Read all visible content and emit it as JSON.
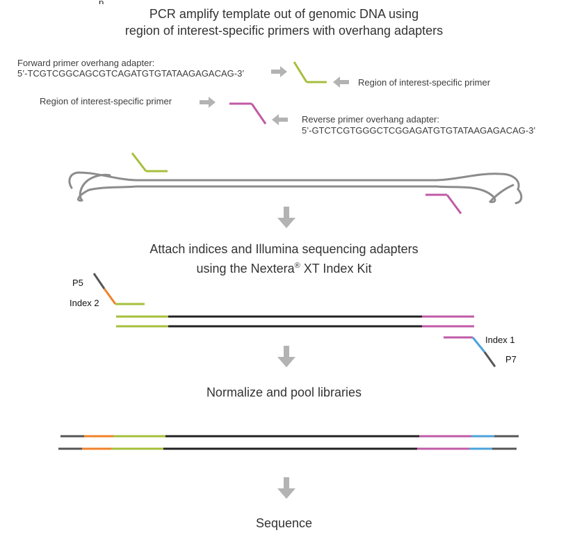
{
  "top_fragment": "p",
  "steps": {
    "step1_line1": "PCR amplify template out of genomic DNA using",
    "step1_line2": "region of interest-specific primers with overhang adapters",
    "step2_line1": "Attach indices and Illumina sequencing adapters",
    "step2_line2_prefix": "using the Nextera",
    "step2_line2_reg": "®",
    "step2_line2_suffix": " XT Index Kit",
    "step3": "Normalize and pool libraries",
    "step4": "Sequence"
  },
  "primers": {
    "forward_title": "Forward primer overhang adapter:",
    "forward_seq": "5’-TCGTCGGCAGCGTCAGATGTGTATAAGAGACAG-3’",
    "forward_region_label": "Region of interest-specific primer",
    "reverse_region_label": "Region of interest-specific primer",
    "reverse_title": "Reverse primer overhang adapter:",
    "reverse_seq": "5’-GTCTCGTGGGCTCGGAGATGTGTATAAGAGACAG-3’"
  },
  "adapters": {
    "p5": "P5",
    "index2": "Index 2",
    "index1": "Index 1",
    "p7": "P7"
  },
  "colors": {
    "green_primer": "#a6bf3b",
    "magenta_primer": "#c05aa6",
    "orange_index2": "#f0822a",
    "blue_index1": "#4ba3db",
    "adapter_gray": "#555555",
    "insert_black": "#222222",
    "arrow_gray": "#b3b3b3",
    "genomic_dna": "#8c8c8c"
  },
  "icons": [
    "arrow-right-icon",
    "arrow-left-icon",
    "arrow-down-icon"
  ]
}
